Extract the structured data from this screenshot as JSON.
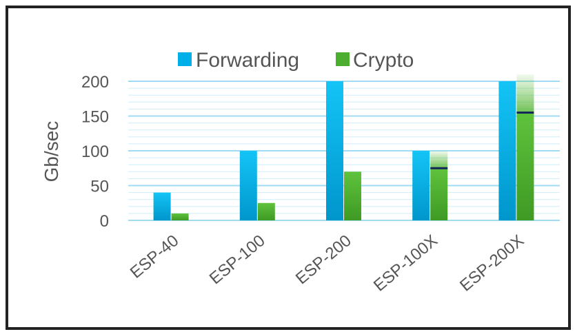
{
  "chart_data": {
    "type": "bar",
    "categories": [
      "ESP-40",
      "ESP-100",
      "ESP-200",
      "ESP-100X",
      "ESP-200X"
    ],
    "series": [
      {
        "name": "Forwarding",
        "values": [
          40,
          100,
          200,
          100,
          200
        ],
        "color": "#00aee8"
      },
      {
        "name": "Crypto",
        "values": [
          10,
          25,
          70,
          75,
          155
        ],
        "color": "#4cae2e"
      }
    ],
    "crypto_extension": [
      0,
      0,
      0,
      25,
      55
    ],
    "ylabel": "Gb/sec",
    "ylim": [
      0,
      200
    ],
    "yticks": [
      0,
      50,
      100,
      150,
      200
    ],
    "grid": true,
    "legend": "top",
    "marker_color": "#13265a"
  }
}
